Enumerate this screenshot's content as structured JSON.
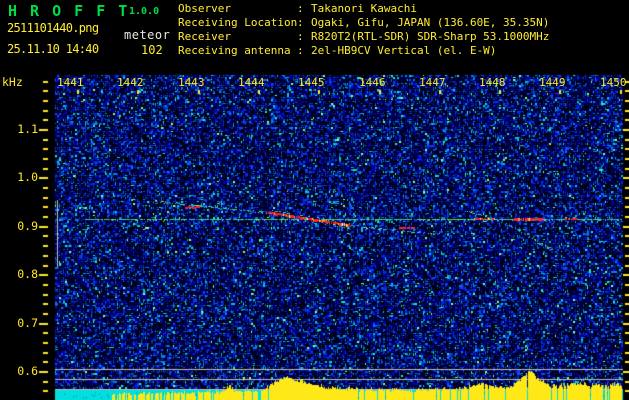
{
  "app": {
    "title": "H R O F F T",
    "version": "1.0.0",
    "filename": "2511101440.png",
    "mode": "meteor",
    "datetime": "25.11.10 14:40",
    "echo_count": "102",
    "info_separator": ":",
    "info": [
      {
        "label": "Observer",
        "value": "Takanori Kawachi"
      },
      {
        "label": "Receiving Location",
        "value": "Ogaki, Gifu, JAPAN (136.60E, 35.35N)"
      },
      {
        "label": "Receiver",
        "value": "R820T2(RTL-SDR) SDR-Sharp 53.1000MHz"
      },
      {
        "label": "Receiving antenna",
        "value": "2el-HB9CV Vertical (el. E-W)"
      }
    ]
  },
  "colors": {
    "title_green": "#00dd44",
    "header_yellow": "#ffee33",
    "mode_white": "#e8e8dc",
    "axis_yellow": "#ffe82c",
    "noise_blue": "#0020c0",
    "noise_cyan": "#00c8e0",
    "carrier_green": "#3fd49a",
    "echo_red": "#ff2020",
    "amp_bar_yellow": "#ffe818",
    "baseline_cyan": "#00dede",
    "ref_gray": "#c0c0c0"
  },
  "chart_data": {
    "type": "heatmap",
    "subtype": "meteor-radio-spectrogram",
    "x_unit": "time (JST, HHMM)",
    "x_ticks": [
      "1441",
      "1442",
      "1443",
      "1444",
      "1445",
      "1446",
      "1447",
      "1448",
      "1449",
      "1450"
    ],
    "y_label": "kHz",
    "y_ticks": [
      "1.1",
      "1.0",
      "0.9",
      "0.8",
      "0.7",
      "0.6"
    ],
    "y_tick_values_khz": [
      1.1,
      1.0,
      0.9,
      0.8,
      0.7,
      0.6
    ],
    "y_range_khz": [
      0.54,
      1.21
    ],
    "grid": false,
    "carrier_line": {
      "freq_khz": 0.914,
      "t_start": 1441.12,
      "t_end": 1450.0
    },
    "reference_lines_khz": [
      0.604,
      0.583,
      0.563
    ],
    "band_marker": {
      "t": 1440.65,
      "f_top_khz": 0.953,
      "f_bottom_khz": 0.815
    },
    "events": [
      {
        "name": "meteor-echo-1",
        "peak_time": "14:44.4",
        "intensity": "strong",
        "trail_t_f": [
          [
            1442.2,
            0.951
          ],
          [
            1444.12,
            0.927
          ],
          [
            1445.5,
            0.9
          ],
          [
            1446.93,
            0.882
          ]
        ],
        "core_t": [
          1444.12,
          1445.5
        ],
        "pre_dash_t_f": [
          [
            1442.78,
            0.941
          ],
          [
            1443.01,
            0.938
          ]
        ]
      },
      {
        "name": "meteor-echo-2",
        "peak_time": "14:48.5",
        "intensity": "strong",
        "trail_t_f": [
          [
            1447.4,
            0.931
          ],
          [
            1448.03,
            0.909
          ],
          [
            1448.92,
            0.847
          ]
        ],
        "carrier_core_segments_t": [
          [
            1447.57,
            1447.93
          ],
          [
            1448.23,
            1448.7
          ],
          [
            1449.07,
            1449.3
          ]
        ],
        "extra_dash_t_f": [
          [
            1446.33,
            0.897
          ],
          [
            1446.58,
            0.896
          ]
        ]
      }
    ],
    "amplitude_profile": [
      [
        1441.0,
        0.0
      ],
      [
        1441.55,
        0.0
      ],
      [
        1441.62,
        0.1
      ],
      [
        1442.0,
        0.1
      ],
      [
        1442.4,
        0.13
      ],
      [
        1443.0,
        0.12
      ],
      [
        1443.35,
        0.15
      ],
      [
        1443.5,
        0.4
      ],
      [
        1443.62,
        0.16
      ],
      [
        1444.0,
        0.18
      ],
      [
        1444.2,
        0.45
      ],
      [
        1444.42,
        0.75
      ],
      [
        1444.7,
        0.62
      ],
      [
        1444.95,
        0.4
      ],
      [
        1445.3,
        0.3
      ],
      [
        1445.9,
        0.26
      ],
      [
        1446.4,
        0.22
      ],
      [
        1446.9,
        0.26
      ],
      [
        1447.3,
        0.28
      ],
      [
        1447.7,
        0.48
      ],
      [
        1447.95,
        0.32
      ],
      [
        1448.2,
        0.42
      ],
      [
        1448.48,
        1.0
      ],
      [
        1448.62,
        0.72
      ],
      [
        1448.85,
        0.38
      ],
      [
        1449.1,
        0.46
      ],
      [
        1449.35,
        0.5
      ],
      [
        1449.6,
        0.44
      ],
      [
        1449.85,
        0.5
      ],
      [
        1450.08,
        0.4
      ]
    ]
  }
}
